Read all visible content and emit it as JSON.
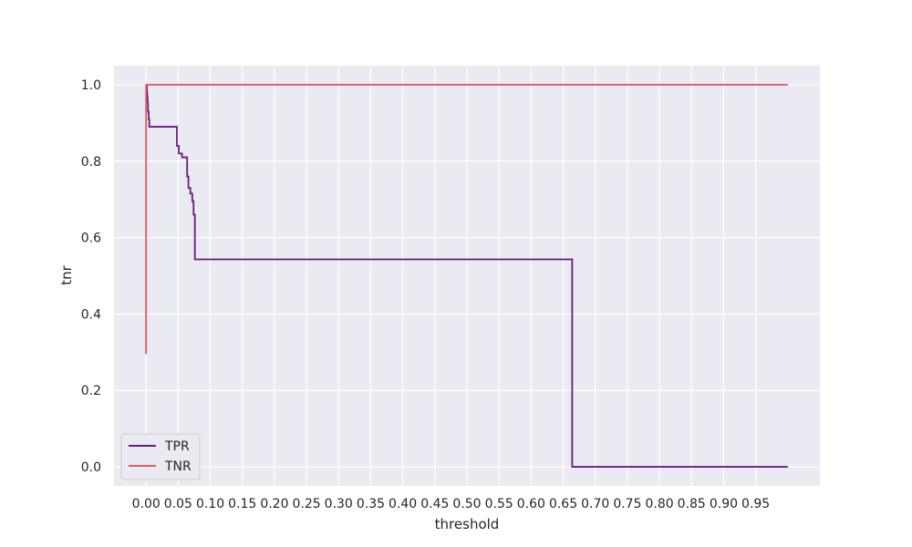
{
  "chart_data": {
    "type": "line",
    "xlabel": "threshold",
    "ylabel": "tnr",
    "xlim": [
      -0.05,
      1.05
    ],
    "ylim": [
      -0.05,
      1.05
    ],
    "grid": true,
    "legend_position": "bottom-left",
    "x_ticks": [
      0.0,
      0.05,
      0.1,
      0.15,
      0.2,
      0.25,
      0.3,
      0.35,
      0.4,
      0.45,
      0.5,
      0.55,
      0.6,
      0.65,
      0.7,
      0.75,
      0.8,
      0.85,
      0.9,
      0.95
    ],
    "x_tick_labels": [
      "0.00",
      "0.05",
      "0.10",
      "0.15",
      "0.20",
      "0.25",
      "0.30",
      "0.35",
      "0.40",
      "0.45",
      "0.50",
      "0.55",
      "0.60",
      "0.65",
      "0.70",
      "0.75",
      "0.80",
      "0.85",
      "0.90",
      "0.95"
    ],
    "y_ticks": [
      0.0,
      0.2,
      0.4,
      0.6,
      0.8,
      1.0
    ],
    "y_tick_labels": [
      "0.0",
      "0.2",
      "0.4",
      "0.6",
      "0.8",
      "1.0"
    ],
    "series": [
      {
        "name": "TPR",
        "color": "#6a1b7f",
        "x": [
          0.0,
          0.001,
          0.002,
          0.002,
          0.003,
          0.003,
          0.004,
          0.004,
          0.005,
          0.005,
          0.048,
          0.048,
          0.051,
          0.051,
          0.056,
          0.056,
          0.064,
          0.064,
          0.066,
          0.066,
          0.069,
          0.069,
          0.072,
          0.072,
          0.074,
          0.074,
          0.076,
          0.076,
          0.664,
          0.664,
          1.0
        ],
        "y": [
          1.0,
          1.0,
          0.97,
          0.97,
          0.95,
          0.93,
          0.93,
          0.91,
          0.91,
          0.89,
          0.89,
          0.84,
          0.84,
          0.82,
          0.82,
          0.81,
          0.81,
          0.76,
          0.76,
          0.73,
          0.73,
          0.715,
          0.715,
          0.695,
          0.695,
          0.66,
          0.66,
          0.543,
          0.543,
          0.0,
          0.0
        ]
      },
      {
        "name": "TNR",
        "color": "#e8595a",
        "x": [
          0.0,
          0.0,
          0.004,
          0.04,
          0.08,
          1.0
        ],
        "y": [
          0.295,
          0.999,
          1.0,
          1.0,
          1.0,
          1.0
        ]
      }
    ]
  }
}
